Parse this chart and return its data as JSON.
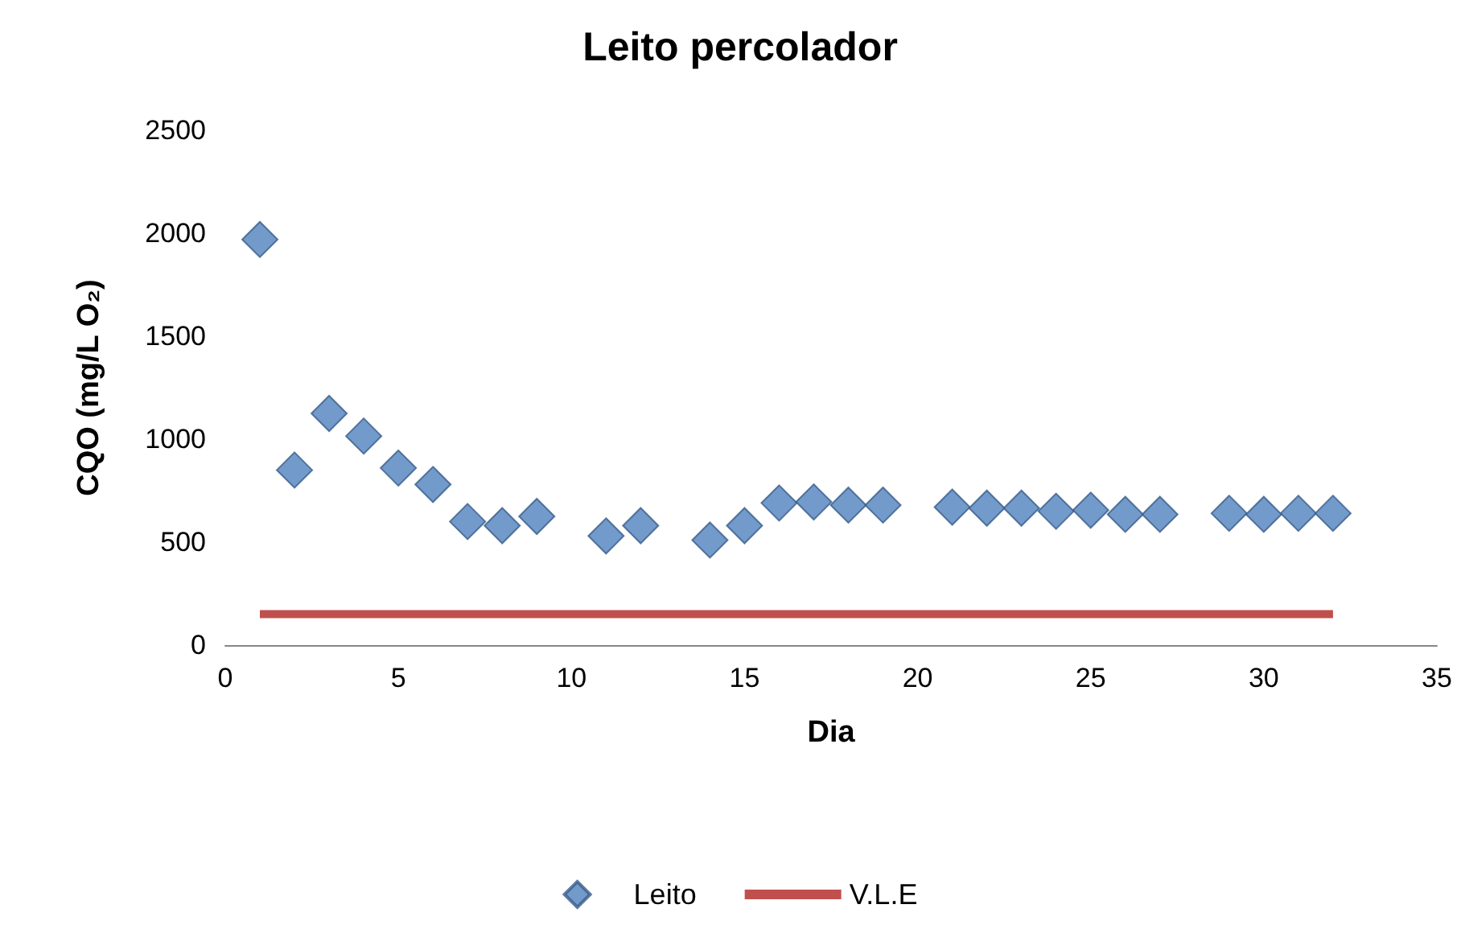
{
  "chart_data": {
    "type": "scatter",
    "title": "Leito percolador",
    "xlabel": "Dia",
    "ylabel": "CQO (mg/L O₂)",
    "series": [
      {
        "name": "Leito",
        "type": "scatter",
        "color": "#4f81bd",
        "x": [
          1,
          2,
          3,
          4,
          5,
          6,
          7,
          8,
          9,
          11,
          12,
          14,
          15,
          16,
          17,
          18,
          19,
          21,
          22,
          23,
          24,
          25,
          26,
          27,
          29,
          30,
          31,
          32
        ],
        "values": [
          1970,
          850,
          1125,
          1015,
          860,
          780,
          600,
          580,
          625,
          530,
          580,
          510,
          580,
          690,
          695,
          680,
          680,
          670,
          665,
          665,
          650,
          655,
          635,
          635,
          640,
          635,
          640,
          640
        ]
      },
      {
        "name": "V.L.E",
        "type": "line",
        "color": "#c0504d",
        "marker": "none",
        "x": [
          1,
          32
        ],
        "values": [
          150,
          150
        ]
      }
    ],
    "xlim": [
      0,
      35
    ],
    "xticks": [
      0,
      5,
      10,
      15,
      20,
      25,
      30,
      35
    ],
    "ylim": [
      0,
      2500
    ],
    "yticks": [
      0,
      500,
      1000,
      1500,
      2000,
      2500
    ],
    "grid": false,
    "legend": "bottom",
    "marker": "diamond"
  }
}
